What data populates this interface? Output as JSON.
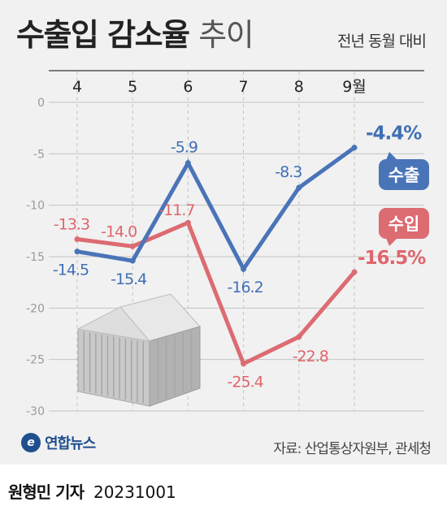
{
  "title_bold": "수출입 감소율",
  "title_light": "추이",
  "subtitle": "전년 동월 대비",
  "source": "자료: 산업통상자원부, 관세청",
  "logo_text": "연합뉴스",
  "byline_name": "원형민 기자",
  "byline_date": "20231001",
  "colors": {
    "export": "#4a74b8",
    "import": "#dc6b72",
    "export_label": "#3f6fb5",
    "import_label": "#e0656c",
    "grid": "#c4c4c4",
    "axis_text": "#9a9a9a"
  },
  "chart_data": {
    "type": "line",
    "categories": [
      "4",
      "5",
      "6",
      "7",
      "8",
      "9월"
    ],
    "ylim": [
      -30,
      0
    ],
    "yticks": [
      0,
      -5,
      -10,
      -15,
      -20,
      -25,
      -30
    ],
    "ytick_labels": [
      "0",
      "-5",
      "-10",
      "-15",
      "-20",
      "-25",
      "-30"
    ],
    "series": [
      {
        "name": "수출",
        "color": "#4a74b8",
        "values": [
          -14.5,
          -15.4,
          -5.9,
          -16.2,
          -8.3,
          -4.4
        ],
        "labels": [
          "-14.5",
          "-15.4",
          "-5.9",
          "-16.2",
          "-8.3",
          "-4.4%"
        ]
      },
      {
        "name": "수입",
        "color": "#dc6b72",
        "values": [
          -13.3,
          -14.0,
          -11.7,
          -25.4,
          -22.8,
          -16.5
        ],
        "labels": [
          "-13.3",
          "-14.0",
          "-11.7",
          "-25.4",
          "-22.8",
          "-16.5%"
        ]
      }
    ]
  }
}
